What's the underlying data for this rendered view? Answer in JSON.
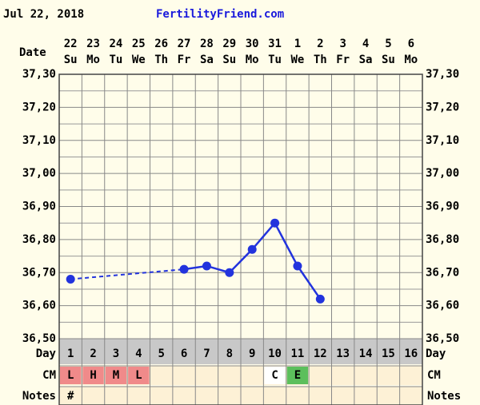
{
  "chart_data": {
    "type": "line",
    "header_date": "Jul 22, 2018",
    "site": "FertilityFriend.com",
    "date_label": "Date",
    "dates": [
      "22",
      "23",
      "24",
      "25",
      "26",
      "27",
      "28",
      "29",
      "30",
      "31",
      "1",
      "2",
      "3",
      "4",
      "5",
      "6"
    ],
    "weekdays": [
      "Su",
      "Mo",
      "Tu",
      "We",
      "Th",
      "Fr",
      "Sa",
      "Su",
      "Mo",
      "Tu",
      "We",
      "Th",
      "Fr",
      "Sa",
      "Su",
      "Mo"
    ],
    "day_label": "Day",
    "categories": [
      1,
      2,
      3,
      4,
      5,
      6,
      7,
      8,
      9,
      10,
      11,
      12,
      13,
      14,
      15,
      16
    ],
    "series": [
      {
        "color": "#2233dd",
        "values": [
          36.68,
          null,
          null,
          null,
          null,
          36.71,
          36.72,
          36.7,
          36.77,
          36.85,
          36.72,
          36.62,
          null,
          null,
          null,
          null
        ]
      }
    ],
    "ylim": [
      36.5,
      37.3
    ],
    "yticks": [
      {
        "value": 36.5,
        "label": "36,50"
      },
      {
        "value": 36.6,
        "label": "36,60"
      },
      {
        "value": 36.7,
        "label": "36,70"
      },
      {
        "value": 36.8,
        "label": "36,80"
      },
      {
        "value": 36.9,
        "label": "36,90"
      },
      {
        "value": 37.0,
        "label": "37,00"
      },
      {
        "value": 37.1,
        "label": "37,10"
      },
      {
        "value": 37.2,
        "label": "37,20"
      },
      {
        "value": 37.3,
        "label": "37,30"
      }
    ],
    "grid": true,
    "cm_label": "CM",
    "cm": [
      "L",
      "H",
      "M",
      "L",
      null,
      null,
      null,
      null,
      null,
      "C",
      "E",
      null,
      null,
      null,
      null,
      null
    ],
    "cm_colors": [
      "#f08a8a",
      "#f08a8a",
      "#f08a8a",
      "#f08a8a",
      null,
      null,
      null,
      null,
      null,
      "#ffffff",
      "#5cbf5c",
      null,
      null,
      null,
      null,
      null
    ],
    "notes_label": "Notes",
    "notes": [
      "#",
      null,
      null,
      null,
      null,
      null,
      null,
      null,
      null,
      null,
      null,
      null,
      null,
      null,
      null,
      null
    ]
  }
}
